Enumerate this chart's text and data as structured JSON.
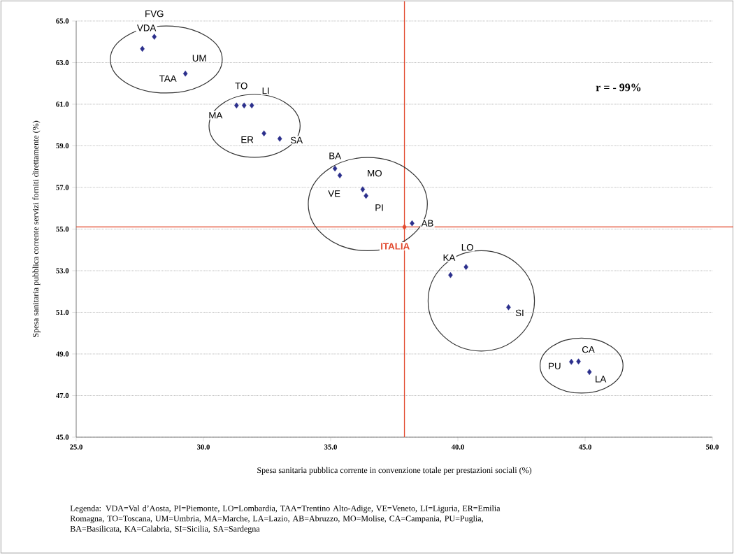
{
  "chart_data": {
    "type": "scatter",
    "xlabel": "Spesa sanitaria pubblica corrente in convenzione totale per prestazioni sociali (%)",
    "ylabel": "Spesa sanitaria pubblica corrente servizi forniti direttamente (%)",
    "xlim": [
      25,
      50
    ],
    "ylim": [
      45,
      65
    ],
    "xticks": [
      {
        "value": 25,
        "label": "25.0"
      },
      {
        "value": 30,
        "label": "30.0"
      },
      {
        "value": 35,
        "label": "35.0"
      },
      {
        "value": 40,
        "label": "40.0"
      },
      {
        "value": 45,
        "label": "45.0"
      },
      {
        "value": 50,
        "label": "50.0"
      }
    ],
    "yticks": [
      {
        "value": 45,
        "label": "45.0"
      },
      {
        "value": 47,
        "label": "47.0"
      },
      {
        "value": 49,
        "label": "49.0"
      },
      {
        "value": 51,
        "label": "51.0"
      },
      {
        "value": 53,
        "label": "53.0"
      },
      {
        "value": 55,
        "label": "55.0"
      },
      {
        "value": 57,
        "label": "57.0"
      },
      {
        "value": 59,
        "label": "59.0"
      },
      {
        "value": 61,
        "label": "61.0"
      },
      {
        "value": 63,
        "label": "63.0"
      },
      {
        "value": 65,
        "label": "65.0"
      }
    ],
    "grid": "y",
    "marker": "diamond",
    "series": [
      {
        "color": "#2b2f8c",
        "x": [
          28.07,
          27.6,
          null,
          29.29,
          31.6,
          31.9,
          31.3,
          32.38,
          33.0,
          35.17,
          35.36,
          36.26,
          36.39,
          38.2,
          39.71,
          40.32,
          41.99,
          44.74,
          44.46,
          45.17
        ],
        "values": [
          64.24,
          63.66,
          null,
          62.47,
          60.94,
          60.94,
          60.94,
          59.6,
          59.34,
          57.91,
          57.58,
          56.91,
          56.6,
          55.28,
          52.79,
          53.18,
          51.24,
          48.64,
          48.62,
          48.13
        ]
      },
      {
        "name": "ITALIA",
        "color": "#e2492e",
        "x": [
          37.9
        ],
        "values": [
          55.1
        ]
      }
    ],
    "ref_lines": [
      {
        "axis": "x",
        "value": 37.9,
        "color": "#e2492e"
      },
      {
        "axis": "y",
        "value": 55.1,
        "color": "#e2492e"
      }
    ],
    "annotations": [
      "r = - 99%",
      "Legenda: VDA=Val d’Aosta, PI=Piemonte, LO=Lombardia, TAA=Trentino Alto-Adige, VE=Veneto, LI=Liguria, ER=Emilia Romagna, TO=Toscana, UM=Umbria, MA=Marche, LA=Lazio, AB=Abruzzo, MO=Molise, CA=Campania, PU=Puglia, BA=Basilicata, KA=Calabria, SI=Sicilia, SA=Sardegna",
      {
        "text": "FVG",
        "x": 28.07,
        "y": 64.24
      },
      {
        "text": "VDA",
        "x": 27.6,
        "y": 63.66
      },
      {
        "text": "UM",
        "x": 29.29,
        "y": 62.47
      },
      {
        "text": "TAA",
        "x": 29.29,
        "y": 62.47
      },
      {
        "text": "TO",
        "x": 31.6,
        "y": 60.94
      },
      {
        "text": "LI",
        "x": 31.9,
        "y": 60.94
      },
      {
        "text": "MA",
        "x": 31.3,
        "y": 60.94
      },
      {
        "text": "ER",
        "x": 32.38,
        "y": 59.6
      },
      {
        "text": "SA",
        "x": 33.0,
        "y": 59.34
      },
      {
        "text": "BA",
        "x": 35.17,
        "y": 57.91
      },
      {
        "text": "VE",
        "x": 35.36,
        "y": 57.58
      },
      {
        "text": "MO",
        "x": 36.26,
        "y": 56.91
      },
      {
        "text": "PI",
        "x": 36.39,
        "y": 56.6
      },
      {
        "text": "AB",
        "x": 38.2,
        "y": 55.28
      },
      {
        "text": "KA",
        "x": 39.71,
        "y": 52.79
      },
      {
        "text": "LO",
        "x": 40.32,
        "y": 53.18
      },
      {
        "text": "SI",
        "x": 41.99,
        "y": 51.24
      },
      {
        "text": "CA",
        "x": 44.74,
        "y": 48.64
      },
      {
        "text": "PU",
        "x": 44.46,
        "y": 48.62
      },
      {
        "text": "LA",
        "x": 45.17,
        "y": 48.13
      }
    ]
  }
}
